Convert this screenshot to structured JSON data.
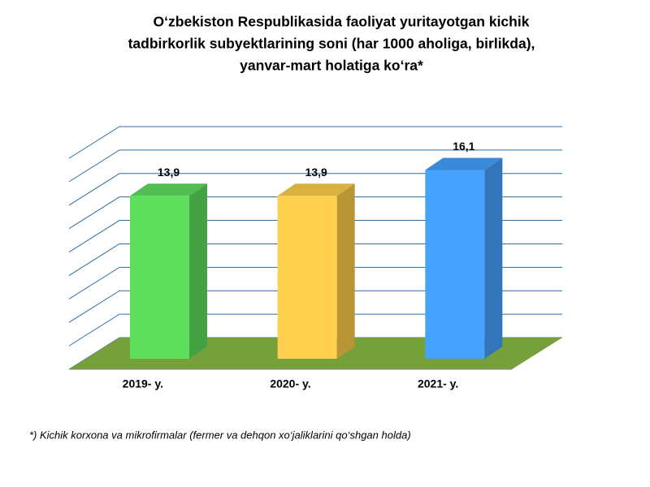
{
  "chart_data": {
    "type": "bar3d",
    "title": [
      "O‘zbekiston Respublikasida faoliyat yuritayotgan kichik",
      "tadbirkorlik subyektlarining soni (har 1000 aholiga, birlikda),",
      "yanvar-mart holatiga ko‘ra*"
    ],
    "categories": [
      "2019- y.",
      "2020- y.",
      "2021- y."
    ],
    "values": [
      13.9,
      13.9,
      16.1
    ],
    "value_labels": [
      "13,9",
      "13,9",
      "16,1"
    ],
    "colors": [
      "#5ee05e",
      "#ffd04d",
      "#45a2ff"
    ],
    "ylim": [
      0,
      18
    ],
    "yticks": [
      0,
      2,
      4,
      6,
      8,
      10,
      12,
      14,
      16,
      18
    ],
    "grid": true,
    "footnote": "*) Kichik korxona va mikrofirmalar (fermer va dehqon xo‘jaliklarini qo‘shgan holda)"
  }
}
